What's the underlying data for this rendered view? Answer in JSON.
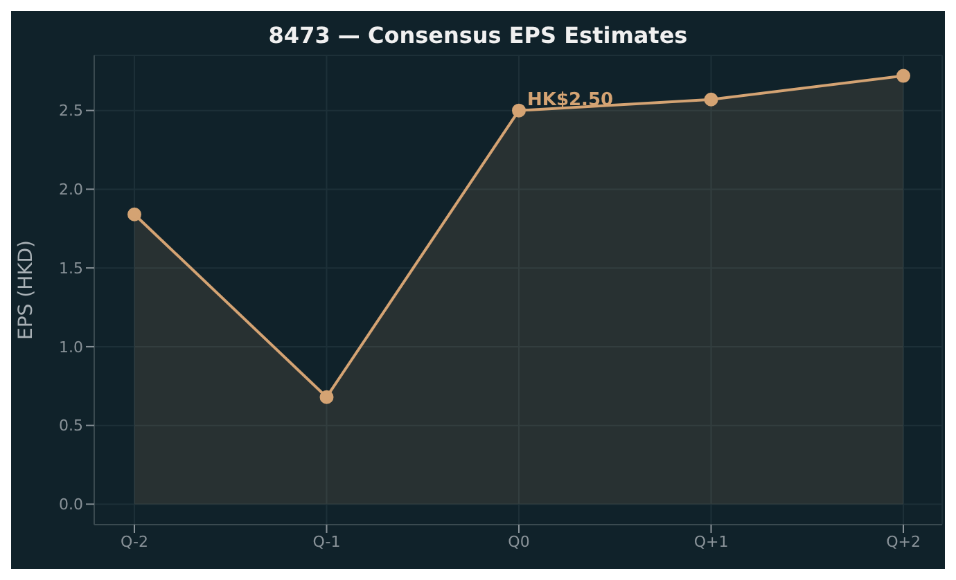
{
  "chart_data": {
    "type": "area",
    "title": "8473 — Consensus EPS Estimates",
    "ylabel": "EPS (HKD)",
    "categories": [
      "Q-2",
      "Q-1",
      "Q0",
      "Q+1",
      "Q+2"
    ],
    "series": [
      {
        "color": "#d4a373",
        "values": [
          1.84,
          0.68,
          2.5,
          2.57,
          2.72
        ]
      }
    ],
    "ylim": [
      -0.13,
      2.85
    ],
    "yticks": [
      {
        "value": 0,
        "label": "0.0"
      },
      {
        "value": 0.5,
        "label": "0.5"
      },
      {
        "value": 1,
        "label": "1.0"
      },
      {
        "value": 1.5,
        "label": "1.5"
      },
      {
        "value": 2,
        "label": "2.0"
      },
      {
        "value": 2.5,
        "label": "2.5"
      }
    ],
    "grid": true,
    "marker": "circle",
    "annotations": [
      {
        "text": "HK$2.50",
        "x": "Q0",
        "y": 2.5
      }
    ]
  }
}
